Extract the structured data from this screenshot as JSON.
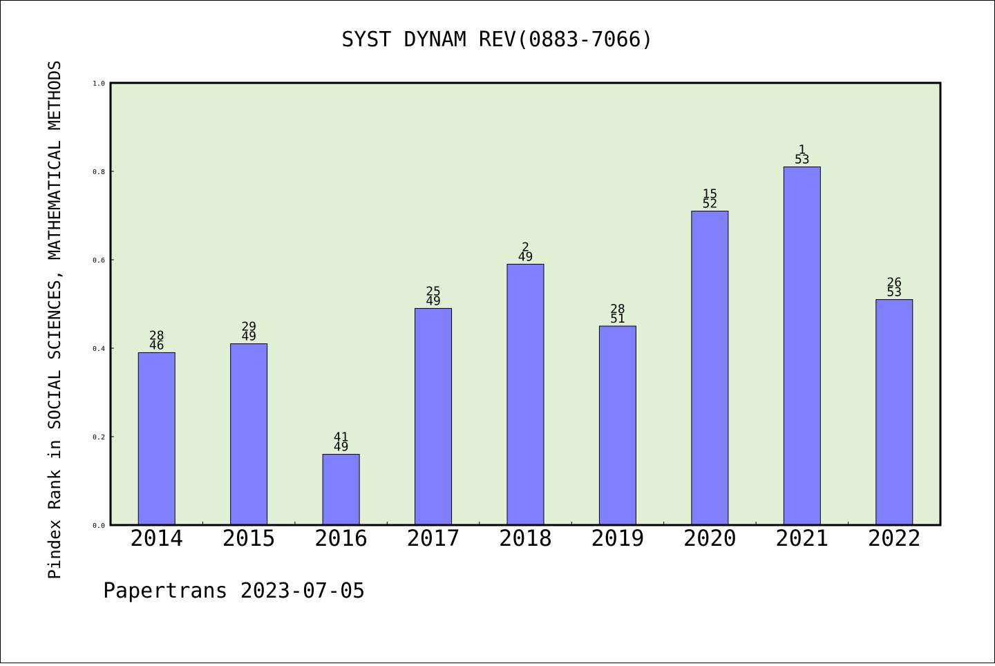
{
  "chart_data": {
    "type": "bar",
    "title": "SYST DYNAM REV(0883-7066)",
    "ylabel": "Pindex Rank in SOCIAL SCIENCES, MATHEMATICAL METHODS",
    "xlabel": "",
    "categories": [
      "2014",
      "2015",
      "2016",
      "2017",
      "2018",
      "2019",
      "2020",
      "2021",
      "2022"
    ],
    "values": [
      0.39,
      0.41,
      0.16,
      0.49,
      0.59,
      0.45,
      0.71,
      0.81,
      0.51
    ],
    "rank": [
      "28",
      "29",
      "41",
      "25",
      "2",
      "28",
      "15",
      "1",
      "26"
    ],
    "total": [
      "46",
      "49",
      "49",
      "49",
      "49",
      "51",
      "52",
      "53",
      "53"
    ],
    "ylim": [
      0,
      1
    ],
    "yticks": [
      "0.0",
      "0.2",
      "0.4",
      "0.6",
      "0.8",
      "1.0"
    ],
    "grid": false,
    "colors": {
      "plot_bg": "#e2f0d6",
      "bar": "#8080ff",
      "bar_edge": "#000000"
    }
  },
  "footer": "Papertrans 2023-07-05"
}
